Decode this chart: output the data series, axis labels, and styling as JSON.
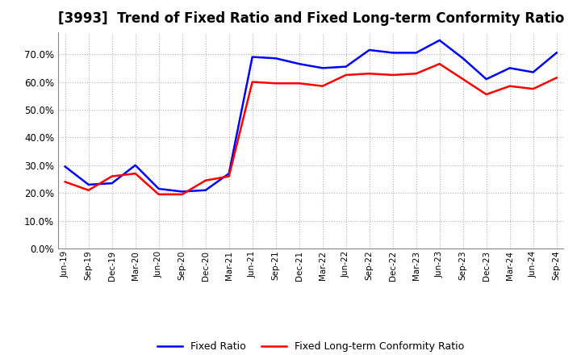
{
  "title": "[3993]  Trend of Fixed Ratio and Fixed Long-term Conformity Ratio",
  "x_labels": [
    "Jun-19",
    "Sep-19",
    "Dec-19",
    "Mar-20",
    "Jun-20",
    "Sep-20",
    "Dec-20",
    "Mar-21",
    "Jun-21",
    "Sep-21",
    "Dec-21",
    "Mar-22",
    "Jun-22",
    "Sep-22",
    "Dec-22",
    "Mar-23",
    "Jun-23",
    "Sep-23",
    "Dec-23",
    "Mar-24",
    "Jun-24",
    "Sep-24"
  ],
  "fixed_ratio": [
    29.5,
    23.0,
    23.5,
    30.0,
    21.5,
    20.5,
    21.0,
    27.0,
    69.0,
    68.5,
    66.5,
    65.0,
    65.5,
    71.5,
    70.5,
    70.5,
    75.0,
    68.5,
    61.0,
    65.0,
    63.5,
    70.5
  ],
  "fixed_lt_ratio": [
    24.0,
    21.0,
    26.0,
    27.0,
    19.5,
    19.5,
    24.5,
    26.0,
    60.0,
    59.5,
    59.5,
    58.5,
    62.5,
    63.0,
    62.5,
    63.0,
    66.5,
    61.0,
    55.5,
    58.5,
    57.5,
    61.5
  ],
  "fixed_ratio_color": "#0000ff",
  "fixed_lt_ratio_color": "#ff0000",
  "ylim": [
    0,
    78
  ],
  "yticks": [
    0,
    10,
    20,
    30,
    40,
    50,
    60,
    70
  ],
  "background_color": "#ffffff",
  "grid_color": "#aaaaaa",
  "title_fontsize": 12,
  "line_width": 1.8
}
